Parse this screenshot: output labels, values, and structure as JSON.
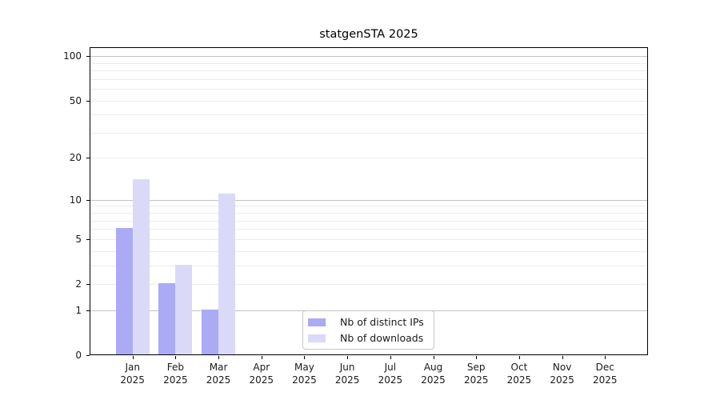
{
  "chart_data": {
    "type": "bar",
    "title": "statgenSTA 2025",
    "year_label": "2025",
    "categories": [
      "Jan",
      "Feb",
      "Mar",
      "Apr",
      "May",
      "Jun",
      "Jul",
      "Aug",
      "Sep",
      "Oct",
      "Nov",
      "Dec"
    ],
    "series": [
      {
        "name": "Nb of distinct IPs",
        "color": "#aaaaf5",
        "values": [
          6,
          2,
          1,
          0,
          0,
          0,
          0,
          0,
          0,
          0,
          0,
          0
        ]
      },
      {
        "name": "Nb of downloads",
        "color": "#dadaf8",
        "values": [
          14,
          3,
          11,
          0,
          0,
          0,
          0,
          0,
          0,
          0,
          0,
          0
        ]
      }
    ],
    "xlabel": "",
    "ylabel": "",
    "y_axis": {
      "scale": "log1p",
      "ticks": [
        0,
        1,
        2,
        5,
        10,
        20,
        50,
        100
      ],
      "major_gridlines": [
        1,
        10,
        100
      ],
      "minor_gridlines": [
        2,
        3,
        4,
        5,
        6,
        7,
        8,
        9,
        20,
        30,
        40,
        50,
        60,
        70,
        80,
        90
      ],
      "ylim": [
        0,
        116
      ]
    },
    "legend": {
      "position": "lower center, inside plot",
      "entries": [
        "Nb of distinct IPs",
        "Nb of downloads"
      ]
    }
  },
  "colors": {
    "axis": "#000000",
    "major_grid": "#c2c2c2",
    "minor_grid": "#ededed",
    "legend_border": "#c9c9c9",
    "background": "#ffffff"
  }
}
